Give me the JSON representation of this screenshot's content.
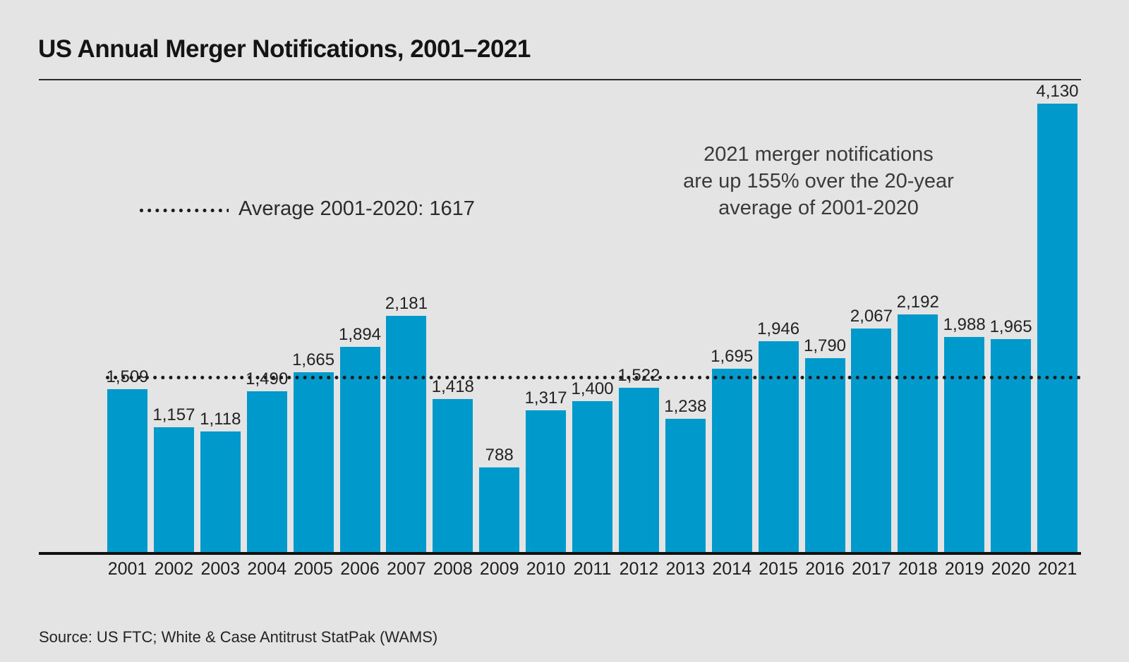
{
  "title": "US Annual Merger Notifications, 2001–2021",
  "legend": {
    "label": "Average 2001-2020: 1617"
  },
  "annotation": {
    "lines": [
      "2021 merger notifications",
      "are up 155% over the 20-year",
      "average of 2001-2020"
    ]
  },
  "source": "Source: US FTC; White & Case Antitrust StatPak (WAMS)",
  "colors": {
    "bar": "#0099cb",
    "background": "#e4e4e4",
    "average_line": "#1b1b1b",
    "axis": "#101010",
    "text": "#222222"
  },
  "chart_data": {
    "type": "bar",
    "title": "US Annual Merger Notifications, 2001–2021",
    "categories": [
      "2001",
      "2002",
      "2003",
      "2004",
      "2005",
      "2006",
      "2007",
      "2008",
      "2009",
      "2010",
      "2011",
      "2012",
      "2013",
      "2014",
      "2015",
      "2016",
      "2017",
      "2018",
      "2019",
      "2020",
      "2021"
    ],
    "values": [
      1509,
      1157,
      1118,
      1490,
      1665,
      1894,
      2181,
      1418,
      788,
      1317,
      1400,
      1522,
      1238,
      1695,
      1946,
      1790,
      2067,
      2192,
      1988,
      1965,
      4130
    ],
    "value_labels": [
      "1,509",
      "1,157",
      "1,118",
      "1,490",
      "1,665",
      "1,894",
      "2,181",
      "1,418",
      "788",
      "1,317",
      "1,400",
      "1,522",
      "1,238",
      "1,695",
      "1,946",
      "1,790",
      "2,067",
      "2,192",
      "1,988",
      "1,965",
      "4,130"
    ],
    "reference_line": {
      "label": "Average 2001-2020: 1617",
      "value": 1617,
      "style": "dotted"
    },
    "xlabel": "",
    "ylabel": "",
    "ylim": [
      0,
      4130
    ],
    "grid": false,
    "legend_position": "upper-left",
    "bar_labels": "above"
  }
}
